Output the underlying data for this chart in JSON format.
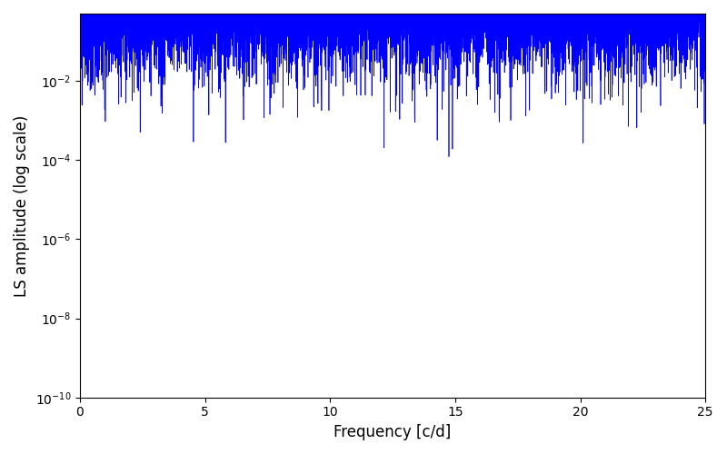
{
  "title": "",
  "xlabel": "Frequency [c/d]",
  "ylabel": "LS amplitude (log scale)",
  "xlim": [
    0,
    25
  ],
  "ylim": [
    1e-10,
    0.5
  ],
  "line_color": "#0000ff",
  "line_width": 0.5,
  "figsize": [
    8.0,
    5.0
  ],
  "dpi": 100,
  "seed": 42,
  "n_points": 10000,
  "freq_max": 25.0,
  "background_color": "#ffffff"
}
